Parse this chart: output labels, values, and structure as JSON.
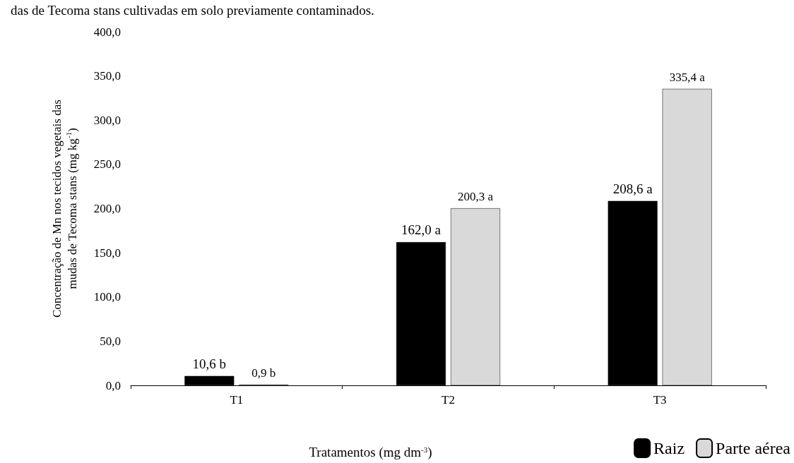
{
  "chart_data": {
    "type": "bar",
    "title": "das de Tecoma stans cultivadas em solo previamente contaminados.",
    "categories": [
      "T1",
      "T2",
      "T3"
    ],
    "series": [
      {
        "name": "Raiz",
        "color": "#000000",
        "values": [
          10.6,
          162.0,
          208.6
        ],
        "value_labels": [
          "10,6 b",
          "162,0 a",
          "208,6 a"
        ]
      },
      {
        "name": "Parte aérea",
        "color": "#d9d9d9",
        "values": [
          0.9,
          200.3,
          335.4
        ],
        "value_labels": [
          "0,9 b",
          "200,3 a",
          "335,4 a"
        ]
      }
    ],
    "xlabel": "Tratamentos (mg dm$^{-3}$)",
    "ylabel": "Concentração de Mn nos tecidos vegetais das\nmudas de Tecoma stans (mg kg$^{-1}$)",
    "ylim": [
      0,
      400
    ],
    "yticks": [
      {
        "value": 0,
        "label": "0,0"
      },
      {
        "value": 50,
        "label": "50,0"
      },
      {
        "value": 100,
        "label": "100,0"
      },
      {
        "value": 150,
        "label": "150,0"
      },
      {
        "value": 200,
        "label": "200,0"
      },
      {
        "value": 250,
        "label": "250,0"
      },
      {
        "value": 300,
        "label": "300,0"
      },
      {
        "value": 350,
        "label": "350,0"
      },
      {
        "value": 400,
        "label": "400,0"
      }
    ],
    "grid": false,
    "legend": "bottom right"
  }
}
